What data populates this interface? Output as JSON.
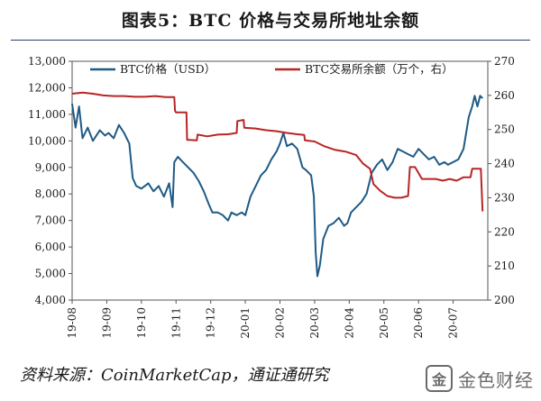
{
  "title": "图表5：BTC 价格与交易所地址余额",
  "source": "资料来源：CoinMarketCap，通证通研究",
  "watermark": {
    "icon": "金",
    "text": "金色财经"
  },
  "chart_data": {
    "type": "line",
    "x_labels": [
      "19-08",
      "19-09",
      "19-10",
      "19-11",
      "19-12",
      "20-01",
      "20-02",
      "20-03",
      "20-04",
      "20-05",
      "20-06",
      "20-07"
    ],
    "y_left": {
      "min": 4000,
      "max": 13000,
      "step": 1000,
      "ticks": [
        "4,000",
        "5,000",
        "6,000",
        "7,000",
        "8,000",
        "9,000",
        "10,000",
        "11,000",
        "12,000",
        "13,000"
      ]
    },
    "y_right": {
      "min": 200,
      "max": 270,
      "step": 10,
      "ticks": [
        "200",
        "210",
        "220",
        "230",
        "240",
        "250",
        "260",
        "270"
      ]
    },
    "legend_position": "top",
    "series": [
      {
        "name": "BTC价格（USD）",
        "axis": "left",
        "color": "#1f5a85",
        "points": [
          [
            0.0,
            11400
          ],
          [
            0.1,
            10500
          ],
          [
            0.2,
            11300
          ],
          [
            0.3,
            10100
          ],
          [
            0.45,
            10500
          ],
          [
            0.6,
            10000
          ],
          [
            0.8,
            10400
          ],
          [
            0.95,
            10200
          ],
          [
            1.05,
            10300
          ],
          [
            1.2,
            10100
          ],
          [
            1.35,
            10600
          ],
          [
            1.5,
            10300
          ],
          [
            1.65,
            9900
          ],
          [
            1.75,
            8600
          ],
          [
            1.85,
            8300
          ],
          [
            2.0,
            8200
          ],
          [
            2.2,
            8400
          ],
          [
            2.35,
            8100
          ],
          [
            2.5,
            8300
          ],
          [
            2.65,
            7900
          ],
          [
            2.8,
            8400
          ],
          [
            2.9,
            7500
          ],
          [
            2.95,
            9200
          ],
          [
            3.05,
            9400
          ],
          [
            3.2,
            9200
          ],
          [
            3.35,
            9000
          ],
          [
            3.5,
            8800
          ],
          [
            3.65,
            8500
          ],
          [
            3.8,
            8100
          ],
          [
            3.95,
            7600
          ],
          [
            4.05,
            7300
          ],
          [
            4.2,
            7300
          ],
          [
            4.35,
            7200
          ],
          [
            4.5,
            7000
          ],
          [
            4.6,
            7300
          ],
          [
            4.75,
            7200
          ],
          [
            4.9,
            7300
          ],
          [
            5.0,
            7200
          ],
          [
            5.15,
            7900
          ],
          [
            5.3,
            8300
          ],
          [
            5.45,
            8700
          ],
          [
            5.6,
            8900
          ],
          [
            5.75,
            9300
          ],
          [
            5.9,
            9600
          ],
          [
            6.0,
            9900
          ],
          [
            6.1,
            10300
          ],
          [
            6.2,
            9800
          ],
          [
            6.35,
            9900
          ],
          [
            6.5,
            9700
          ],
          [
            6.65,
            9000
          ],
          [
            6.75,
            8900
          ],
          [
            6.9,
            8700
          ],
          [
            6.98,
            7900
          ],
          [
            7.03,
            5800
          ],
          [
            7.08,
            4900
          ],
          [
            7.15,
            5300
          ],
          [
            7.25,
            6300
          ],
          [
            7.4,
            6800
          ],
          [
            7.55,
            6900
          ],
          [
            7.7,
            7100
          ],
          [
            7.85,
            6800
          ],
          [
            7.95,
            6900
          ],
          [
            8.05,
            7300
          ],
          [
            8.2,
            7500
          ],
          [
            8.35,
            7700
          ],
          [
            8.5,
            8000
          ],
          [
            8.65,
            8800
          ],
          [
            8.8,
            9100
          ],
          [
            8.95,
            9300
          ],
          [
            9.1,
            8900
          ],
          [
            9.25,
            9200
          ],
          [
            9.4,
            9700
          ],
          [
            9.55,
            9600
          ],
          [
            9.7,
            9500
          ],
          [
            9.85,
            9400
          ],
          [
            10.0,
            9700
          ],
          [
            10.15,
            9500
          ],
          [
            10.3,
            9300
          ],
          [
            10.45,
            9400
          ],
          [
            10.6,
            9100
          ],
          [
            10.75,
            9200
          ],
          [
            10.85,
            9100
          ],
          [
            11.0,
            9200
          ],
          [
            11.15,
            9300
          ],
          [
            11.3,
            9700
          ],
          [
            11.45,
            10900
          ],
          [
            11.55,
            11300
          ],
          [
            11.62,
            11700
          ],
          [
            11.7,
            11300
          ],
          [
            11.78,
            11700
          ],
          [
            11.85,
            11600
          ]
        ]
      },
      {
        "name": "BTC交易所余额（万个，右）",
        "axis": "right",
        "color": "#b82525",
        "points": [
          [
            0.0,
            260.5
          ],
          [
            0.3,
            260.8
          ],
          [
            0.6,
            260.5
          ],
          [
            0.9,
            260.0
          ],
          [
            1.2,
            259.8
          ],
          [
            1.5,
            259.8
          ],
          [
            1.8,
            259.6
          ],
          [
            2.1,
            259.6
          ],
          [
            2.4,
            259.8
          ],
          [
            2.7,
            259.5
          ],
          [
            2.95,
            259.5
          ],
          [
            2.97,
            255.5
          ],
          [
            3.0,
            255.0
          ],
          [
            3.3,
            255.0
          ],
          [
            3.32,
            247.0
          ],
          [
            3.6,
            246.8
          ],
          [
            3.62,
            248.5
          ],
          [
            3.9,
            248.0
          ],
          [
            4.2,
            248.5
          ],
          [
            4.5,
            248.6
          ],
          [
            4.75,
            249.0
          ],
          [
            4.77,
            252.5
          ],
          [
            4.95,
            252.8
          ],
          [
            4.97,
            250.5
          ],
          [
            5.3,
            250.3
          ],
          [
            5.6,
            249.8
          ],
          [
            5.9,
            249.5
          ],
          [
            6.2,
            249.0
          ],
          [
            6.5,
            248.6
          ],
          [
            6.7,
            248.4
          ],
          [
            6.72,
            246.8
          ],
          [
            7.0,
            246.5
          ],
          [
            7.3,
            245.0
          ],
          [
            7.6,
            244.0
          ],
          [
            7.9,
            243.5
          ],
          [
            8.2,
            242.5
          ],
          [
            8.4,
            240.0
          ],
          [
            8.6,
            238.5
          ],
          [
            8.7,
            234.0
          ],
          [
            8.9,
            232.0
          ],
          [
            9.1,
            230.5
          ],
          [
            9.3,
            230.0
          ],
          [
            9.5,
            230.0
          ],
          [
            9.7,
            230.5
          ],
          [
            9.75,
            239.0
          ],
          [
            9.9,
            239.0
          ],
          [
            10.1,
            235.5
          ],
          [
            10.3,
            235.5
          ],
          [
            10.5,
            235.5
          ],
          [
            10.7,
            235.0
          ],
          [
            10.9,
            235.5
          ],
          [
            11.1,
            235.0
          ],
          [
            11.3,
            236.0
          ],
          [
            11.5,
            236.0
          ],
          [
            11.55,
            238.5
          ],
          [
            11.8,
            238.5
          ],
          [
            11.85,
            226.0
          ]
        ]
      }
    ]
  }
}
